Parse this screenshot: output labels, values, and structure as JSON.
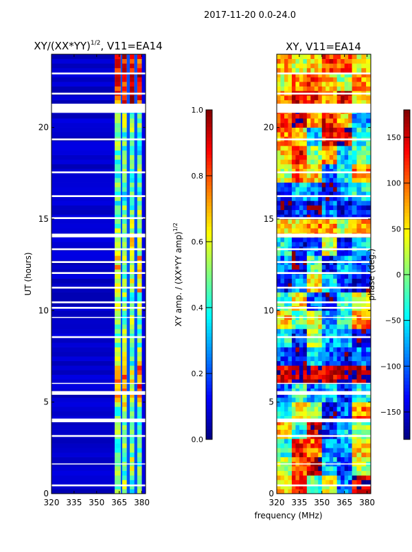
{
  "suptitle": "2017-11-20 0.0-24.0",
  "chart_data": [
    {
      "type": "heatmap",
      "title_main": "XY/(XX*YY)",
      "title_sup": "1/2",
      "title_rest": ", V11=EA14",
      "xlabel": "frequency (MHz)",
      "ylabel": "UT (hours)",
      "xlim": [
        320,
        382.5
      ],
      "ylim": [
        0,
        24
      ],
      "xticks": [
        "320",
        "335",
        "350",
        "365",
        "380"
      ],
      "xtick_values": [
        320,
        335,
        350,
        365,
        380
      ],
      "yticks": [
        "0",
        "5",
        "10",
        "15",
        "20"
      ],
      "ytick_values": [
        0,
        5,
        10,
        15,
        20
      ],
      "background_value": 0.05,
      "channel_bands_mhz": [
        [
          362,
          366
        ],
        [
          367,
          370
        ],
        [
          372,
          375
        ],
        [
          377,
          380
        ]
      ],
      "channel_gap_value": 0.2,
      "hourly_channel_values": [
        [
          0.45,
          0.55,
          0.4,
          0.5
        ],
        [
          0.5,
          0.45,
          0.55,
          0.45
        ],
        [
          0.4,
          0.55,
          0.45,
          0.5
        ],
        [
          0.5,
          0.45,
          0.5,
          0.4
        ],
        [
          0.45,
          0.6,
          0.4,
          0.5
        ],
        [
          0.75,
          0.7,
          0.65,
          0.8
        ],
        [
          0.7,
          0.8,
          0.6,
          0.75
        ],
        [
          0.5,
          0.55,
          0.45,
          0.6
        ],
        [
          0.45,
          0.5,
          0.5,
          0.45
        ],
        [
          0.5,
          0.45,
          0.55,
          0.5
        ],
        [
          0.55,
          0.5,
          0.45,
          0.5
        ],
        [
          0.6,
          0.5,
          0.55,
          0.65
        ],
        [
          0.65,
          0.55,
          0.6,
          0.7
        ],
        [
          0.55,
          0.5,
          0.6,
          0.5
        ],
        [
          0.5,
          0.45,
          0.55,
          0.5
        ],
        [
          0.45,
          0.5,
          0.45,
          0.55
        ],
        [
          0.45,
          0.4,
          0.5,
          0.45
        ],
        [
          0.4,
          0.5,
          0.45,
          0.5
        ],
        [
          0.45,
          0.45,
          0.5,
          0.4
        ],
        [
          0.5,
          0.45,
          0.55,
          0.45
        ],
        [
          0.5,
          0.6,
          0.45,
          0.5
        ],
        [
          0.8,
          0.85,
          0.9,
          0.85
        ],
        [
          0.85,
          0.8,
          0.9,
          0.9
        ],
        [
          0.85,
          0.9,
          0.85,
          0.8
        ]
      ],
      "colorbar": {
        "label_main": "XY amp. / (XX*YY amp)",
        "label_sup": "1/2",
        "range": [
          0,
          1
        ],
        "ticks": [
          "0.0",
          "0.2",
          "0.4",
          "0.6",
          "0.8",
          "1.0"
        ],
        "tick_values": [
          0,
          0.2,
          0.4,
          0.6,
          0.8,
          1.0
        ],
        "colormap": "jet"
      }
    },
    {
      "type": "heatmap",
      "title": "XY, V11=EA14",
      "xlabel": "frequency (MHz)",
      "xlim": [
        320,
        382.5
      ],
      "ylim": [
        0,
        24
      ],
      "xticks": [
        "320",
        "335",
        "350",
        "365",
        "380"
      ],
      "xtick_values": [
        320,
        335,
        350,
        365,
        380
      ],
      "yticks": [
        "0",
        "5",
        "10",
        "15",
        "20"
      ],
      "ytick_values": [
        0,
        5,
        10,
        15,
        20
      ],
      "freq_bin_edges_mhz": [
        320,
        330,
        340,
        350,
        360,
        370,
        382.5
      ],
      "hourly_phase_deg": [
        [
          60,
          120,
          -20,
          40,
          -100,
          150
        ],
        [
          30,
          90,
          140,
          -60,
          -120,
          20
        ],
        [
          -30,
          130,
          100,
          -90,
          -80,
          60
        ],
        [
          80,
          -40,
          150,
          -120,
          -60,
          10
        ],
        [
          -60,
          40,
          20,
          -140,
          -100,
          90
        ],
        [
          -110,
          -30,
          -90,
          -60,
          -130,
          -40
        ],
        [
          150,
          170,
          160,
          140,
          175,
          155
        ],
        [
          -120,
          -150,
          -60,
          -100,
          -140,
          -90
        ],
        [
          -40,
          -130,
          20,
          -80,
          -60,
          -150
        ],
        [
          60,
          -20,
          30,
          -70,
          -40,
          90
        ],
        [
          -20,
          60,
          -110,
          -150,
          -30,
          40
        ],
        [
          -140,
          -90,
          50,
          -60,
          -120,
          -150
        ],
        [
          -100,
          -160,
          -20,
          -130,
          -70,
          -110
        ],
        [
          -40,
          -140,
          -90,
          30,
          -150,
          -60
        ],
        [
          60,
          40,
          90,
          80,
          20,
          70
        ],
        [
          -150,
          -120,
          -160,
          -90,
          -140,
          -130
        ],
        [
          -120,
          -60,
          -100,
          -150,
          -80,
          -40
        ],
        [
          20,
          100,
          60,
          -100,
          -40,
          90
        ],
        [
          60,
          130,
          10,
          80,
          -60,
          -20
        ],
        [
          90,
          40,
          -80,
          140,
          150,
          -40
        ],
        [
          120,
          160,
          70,
          130,
          60,
          -80
        ],
        [
          100,
          140,
          120,
          80,
          150,
          60
        ],
        [
          40,
          90,
          110,
          60,
          20,
          80
        ],
        [
          80,
          30,
          60,
          120,
          100,
          50
        ]
      ],
      "colorbar": {
        "label": "phase (deg.)",
        "range": [
          -180,
          180
        ],
        "ticks": [
          "−150",
          "−100",
          "−50",
          "0",
          "50",
          "100",
          "150"
        ],
        "tick_values": [
          -150,
          -100,
          -50,
          0,
          50,
          100,
          150
        ],
        "colormap": "jet"
      }
    }
  ],
  "flagged_intervals_hours": [
    [
      0.4,
      0.5
    ],
    [
      1.6,
      1.65
    ],
    [
      3.1,
      3.2
    ],
    [
      3.9,
      4.1
    ],
    [
      5.4,
      5.6
    ],
    [
      6.0,
      6.05
    ],
    [
      8.5,
      8.6
    ],
    [
      9.6,
      9.65
    ],
    [
      10.1,
      10.2
    ],
    [
      10.4,
      10.5
    ],
    [
      11.2,
      11.3
    ],
    [
      12.0,
      12.1
    ],
    [
      12.6,
      12.7
    ],
    [
      13.3,
      13.4
    ],
    [
      14.0,
      14.2
    ],
    [
      15.0,
      15.1
    ],
    [
      16.2,
      16.3
    ],
    [
      17.5,
      17.6
    ],
    [
      19.3,
      19.4
    ],
    [
      20.8,
      21.3
    ],
    [
      21.8,
      21.9
    ],
    [
      22.9,
      23.0
    ]
  ]
}
